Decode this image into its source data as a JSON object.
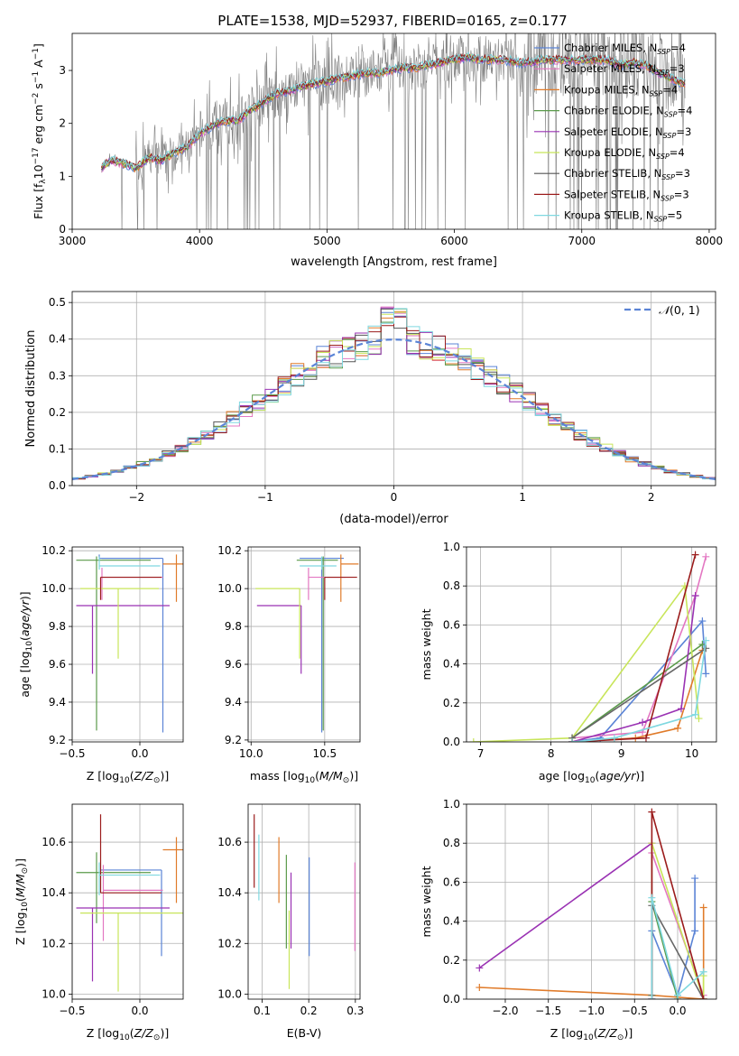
{
  "figure_title": "PLATE=1538, MJD=52937, FIBERID=0165, z=0.177",
  "legend_entries": [
    {
      "label": "Chabrier MILES",
      "nssp": "4",
      "color": "#5b84d6"
    },
    {
      "label": "Salpeter MILES",
      "nssp": "3",
      "color": "#e377c2"
    },
    {
      "label": "Kroupa MILES",
      "nssp": "4",
      "color": "#e07b2a"
    },
    {
      "label": "Chabrier ELODIE",
      "nssp": "4",
      "color": "#5a9a4a"
    },
    {
      "label": "Salpeter ELODIE",
      "nssp": "3",
      "color": "#9a32b3"
    },
    {
      "label": "Kroupa ELODIE",
      "nssp": "4",
      "color": "#c8e55a"
    },
    {
      "label": "Chabrier STELIB",
      "nssp": "3",
      "color": "#555555"
    },
    {
      "label": "Salpeter STELIB",
      "nssp": "3",
      "color": "#9b1c1c"
    },
    {
      "label": "Kroupa STELIB",
      "nssp": "5",
      "color": "#7fd8e0"
    }
  ],
  "chart_data": [
    {
      "id": "spectrum",
      "type": "line",
      "xlabel": "wavelength [Angstrom, rest frame]",
      "ylabel": "Flux [f",
      "xlim": [
        3000,
        8050
      ],
      "ylim": [
        0,
        3.7
      ],
      "xticks": [
        3000,
        4000,
        5000,
        6000,
        7000,
        8000
      ],
      "yticks": [
        0,
        1,
        2,
        3
      ],
      "data_color": "#808080",
      "model_x": [
        3230,
        3300,
        3400,
        3500,
        3600,
        3700,
        3800,
        3900,
        4000,
        4100,
        4200,
        4300,
        4400,
        4500,
        4600,
        4700,
        4800,
        4900,
        5000,
        5100,
        5200,
        5300,
        5400,
        5500,
        5600,
        5700,
        5800,
        5900,
        6000,
        6100,
        6200,
        6300,
        6400,
        6500,
        6600,
        6700,
        6800,
        6900,
        7000,
        7100,
        7200,
        7300,
        7400,
        7500,
        7600,
        7700,
        7800
      ],
      "model_y": [
        1.15,
        1.3,
        1.25,
        1.15,
        1.35,
        1.3,
        1.45,
        1.55,
        1.8,
        1.95,
        2.05,
        2.05,
        2.25,
        2.4,
        2.55,
        2.6,
        2.7,
        2.75,
        2.8,
        2.85,
        2.9,
        2.95,
        2.95,
        3.0,
        3.05,
        3.05,
        3.1,
        3.15,
        3.2,
        3.25,
        3.2,
        3.2,
        3.2,
        3.15,
        3.15,
        3.2,
        3.2,
        3.2,
        3.2,
        3.2,
        3.2,
        3.1,
        3.15,
        3.1,
        2.95,
        2.85,
        2.75
      ]
    },
    {
      "id": "residuals",
      "type": "line",
      "xlabel": "(data-model)/error",
      "ylabel": "Normed distribution",
      "xlim": [
        -2.5,
        2.5
      ],
      "ylim": [
        0,
        0.53
      ],
      "xticks": [
        -2,
        -1,
        0,
        1,
        2
      ],
      "yticks": [
        0.0,
        0.1,
        0.2,
        0.3,
        0.4,
        0.5
      ],
      "legend_label": "(0, 1)",
      "legend_symbol": "𝒩",
      "bin_width": 0.1
    },
    {
      "id": "age-vs-z",
      "type": "scatter",
      "xlabel": "Z [log",
      "ylabel": "age  [log",
      "xlim": [
        -0.5,
        0.32
      ],
      "ylim": [
        9.19,
        10.22
      ],
      "xticks": [
        -0.5,
        0.0
      ],
      "yticks": [
        9.2,
        9.4,
        9.6,
        9.8,
        10.0,
        10.2
      ],
      "points": [
        {
          "x": 0.17,
          "y": 10.16,
          "xerr": [
            0.45,
            0.0
          ],
          "yerr": [
            0.92,
            0.0
          ],
          "color": "#5b84d6"
        },
        {
          "x": -0.3,
          "y": 10.16,
          "xerr": [
            0.0,
            0.45
          ],
          "yerr": [
            0.0,
            0.02
          ],
          "color": "#5b84d6"
        },
        {
          "x": 0.27,
          "y": 10.13,
          "xerr": [
            0.1,
            0.05
          ],
          "yerr": [
            0.2,
            0.05
          ],
          "color": "#e07b2a"
        },
        {
          "x": -0.32,
          "y": 10.15,
          "xerr": [
            0.15,
            0.4
          ],
          "yerr": [
            0.9,
            0.02
          ],
          "color": "#5a9a4a"
        },
        {
          "x": -0.28,
          "y": 10.06,
          "xerr": [
            0.0,
            0.45
          ],
          "yerr": [
            0.12,
            0.05
          ],
          "color": "#e377c2"
        },
        {
          "x": -0.35,
          "y": 9.91,
          "xerr": [
            0.12,
            0.57
          ],
          "yerr": [
            0.36,
            0.0
          ],
          "color": "#9a32b3"
        },
        {
          "x": -0.16,
          "y": 10.0,
          "xerr": [
            0.28,
            0.3
          ],
          "yerr": [
            0.37,
            0.0
          ],
          "color": "#c8e55a"
        },
        {
          "x": -0.29,
          "y": 10.06,
          "xerr": [
            0.0,
            0.45
          ],
          "yerr": [
            0.12,
            0.0
          ],
          "color": "#9b1c1c"
        },
        {
          "x": -0.3,
          "y": 10.12,
          "xerr": [
            0.0,
            0.45
          ],
          "yerr": [
            0.02,
            0.05
          ],
          "color": "#7fd8e0"
        }
      ]
    },
    {
      "id": "age-vs-mass",
      "type": "scatter",
      "xlabel": "mass [log",
      "ylabel": "",
      "xlim": [
        9.98,
        10.74
      ],
      "ylim": [
        9.19,
        10.22
      ],
      "xticks": [
        10.0,
        10.5
      ],
      "yticks": [
        9.2,
        9.4,
        9.6,
        9.8,
        10.0,
        10.2
      ],
      "points": [
        {
          "x": 10.48,
          "y": 10.16,
          "xerr": [
            0.15,
            0.15
          ],
          "yerr": [
            0.92,
            0.0
          ],
          "color": "#5b84d6"
        },
        {
          "x": 10.61,
          "y": 10.13,
          "xerr": [
            0.0,
            0.12
          ],
          "yerr": [
            0.2,
            0.05
          ],
          "color": "#e07b2a"
        },
        {
          "x": 10.49,
          "y": 10.15,
          "xerr": [
            0.18,
            0.1
          ],
          "yerr": [
            0.9,
            0.02
          ],
          "color": "#5a9a4a"
        },
        {
          "x": 10.39,
          "y": 10.06,
          "xerr": [
            0.0,
            0.25
          ],
          "yerr": [
            0.12,
            0.05
          ],
          "color": "#e377c2"
        },
        {
          "x": 10.34,
          "y": 9.91,
          "xerr": [
            0.3,
            0.0
          ],
          "yerr": [
            0.36,
            0.0
          ],
          "color": "#9a32b3"
        },
        {
          "x": 10.33,
          "y": 10.0,
          "xerr": [
            0.3,
            0.0
          ],
          "yerr": [
            0.37,
            0.0
          ],
          "color": "#c8e55a"
        },
        {
          "x": 10.5,
          "y": 10.06,
          "xerr": [
            0.0,
            0.22
          ],
          "yerr": [
            0.12,
            0.0
          ],
          "color": "#9b1c1c"
        },
        {
          "x": 10.48,
          "y": 10.12,
          "xerr": [
            0.15,
            0.1
          ],
          "yerr": [
            0.02,
            0.05
          ],
          "color": "#7fd8e0"
        }
      ]
    },
    {
      "id": "weight-vs-age",
      "type": "line",
      "xlabel": "age  [log",
      "ylabel": "mass weight",
      "xlim": [
        6.8,
        10.35
      ],
      "ylim": [
        0,
        1
      ],
      "xticks": [
        7,
        8,
        9,
        10
      ],
      "yticks": [
        0.0,
        0.2,
        0.4,
        0.6,
        0.8,
        1.0
      ],
      "series": [
        {
          "color": "#5b84d6",
          "x": [
            8.3,
            8.7,
            10.15,
            10.2
          ],
          "y": [
            0.0,
            0.02,
            0.62,
            0.35
          ]
        },
        {
          "color": "#e377c2",
          "x": [
            8.3,
            9.3,
            10.05,
            10.2
          ],
          "y": [
            0.02,
            0.05,
            0.75,
            0.95
          ]
        },
        {
          "color": "#e07b2a",
          "x": [
            8.3,
            9.2,
            9.8,
            10.15
          ],
          "y": [
            0.0,
            0.02,
            0.07,
            0.47
          ]
        },
        {
          "color": "#5a9a4a",
          "x": [
            8.3,
            10.15
          ],
          "y": [
            0.02,
            0.5
          ]
        },
        {
          "color": "#9a32b3",
          "x": [
            8.3,
            9.3,
            9.85,
            10.05
          ],
          "y": [
            0.0,
            0.1,
            0.17,
            0.75
          ]
        },
        {
          "color": "#c8e55a",
          "x": [
            6.9,
            8.3,
            9.9,
            10.1
          ],
          "y": [
            0.0,
            0.02,
            0.8,
            0.12
          ]
        },
        {
          "color": "#666666",
          "x": [
            8.3,
            10.2
          ],
          "y": [
            0.02,
            0.48
          ]
        },
        {
          "color": "#9b1c1c",
          "x": [
            8.3,
            9.35,
            10.05
          ],
          "y": [
            0.0,
            0.02,
            0.96
          ]
        },
        {
          "color": "#7fd8e0",
          "x": [
            8.3,
            8.9,
            10.05,
            10.2
          ],
          "y": [
            0.0,
            0.02,
            0.14,
            0.52
          ]
        }
      ]
    },
    {
      "id": "mass-vs-z",
      "type": "scatter",
      "xlabel": "Z [log",
      "ylabel": "mass [log",
      "xlim": [
        -0.5,
        0.32
      ],
      "ylim": [
        9.98,
        10.75
      ],
      "xticks": [
        -0.5,
        0.0
      ],
      "yticks": [
        10.0,
        10.2,
        10.4,
        10.6
      ],
      "points": [
        {
          "x": 0.16,
          "y": 10.49,
          "xerr": [
            0.45,
            0.0
          ],
          "yerr": [
            0.34,
            0.0
          ],
          "color": "#5b84d6"
        },
        {
          "x": 0.27,
          "y": 10.57,
          "xerr": [
            0.1,
            0.05
          ],
          "yerr": [
            0.21,
            0.05
          ],
          "color": "#e07b2a"
        },
        {
          "x": -0.32,
          "y": 10.48,
          "xerr": [
            0.15,
            0.4
          ],
          "yerr": [
            0.2,
            0.08
          ],
          "color": "#5a9a4a"
        },
        {
          "x": -0.27,
          "y": 10.41,
          "xerr": [
            0.0,
            0.44
          ],
          "yerr": [
            0.2,
            0.1
          ],
          "color": "#e377c2"
        },
        {
          "x": -0.35,
          "y": 10.34,
          "xerr": [
            0.12,
            0.57
          ],
          "yerr": [
            0.29,
            0.0
          ],
          "color": "#9a32b3"
        },
        {
          "x": -0.16,
          "y": 10.32,
          "xerr": [
            0.28,
            0.5
          ],
          "yerr": [
            0.31,
            0.0
          ],
          "color": "#c8e55a"
        },
        {
          "x": -0.29,
          "y": 10.4,
          "xerr": [
            0.0,
            0.45
          ],
          "yerr": [
            0.0,
            0.31
          ],
          "color": "#9b1c1c"
        },
        {
          "x": -0.3,
          "y": 10.47,
          "xerr": [
            0.0,
            0.45
          ],
          "yerr": [
            0.08,
            0.05
          ],
          "color": "#7fd8e0"
        }
      ]
    },
    {
      "id": "mass-vs-ebv",
      "type": "scatter",
      "xlabel": "E(B-V)",
      "ylabel": "",
      "xlim": [
        0.07,
        0.31
      ],
      "ylim": [
        9.98,
        10.75
      ],
      "xticks": [
        0.1,
        0.2,
        0.3
      ],
      "yticks": [
        10.0,
        10.2,
        10.4,
        10.6
      ],
      "bars": [
        {
          "x": 0.083,
          "y0": 10.42,
          "y1": 10.71,
          "color": "#9b1c1c"
        },
        {
          "x": 0.093,
          "y0": 10.37,
          "y1": 10.63,
          "color": "#7fd8e0"
        },
        {
          "x": 0.136,
          "y0": 10.36,
          "y1": 10.62,
          "color": "#e07b2a"
        },
        {
          "x": 0.152,
          "y0": 10.18,
          "y1": 10.55,
          "color": "#5a9a4a"
        },
        {
          "x": 0.158,
          "y0": 10.02,
          "y1": 10.33,
          "color": "#c8e55a"
        },
        {
          "x": 0.162,
          "y0": 10.18,
          "y1": 10.48,
          "color": "#9a32b3"
        },
        {
          "x": 0.201,
          "y0": 10.15,
          "y1": 10.54,
          "color": "#5b84d6"
        },
        {
          "x": 0.299,
          "y0": 10.17,
          "y1": 10.52,
          "color": "#e377c2"
        }
      ]
    },
    {
      "id": "weight-vs-z",
      "type": "line",
      "xlabel": "Z [log",
      "ylabel": "mass weight",
      "xlim": [
        -2.45,
        0.45
      ],
      "ylim": [
        0,
        1
      ],
      "xticks": [
        -2.0,
        -1.5,
        -1.0,
        -0.5,
        0.0
      ],
      "yticks": [
        0.0,
        0.2,
        0.4,
        0.6,
        0.8,
        1.0
      ],
      "series": [
        {
          "color": "#5b84d6",
          "x": [
            -0.3,
            -0.3,
            0.0,
            0.2,
            0.2
          ],
          "y": [
            0.0,
            0.35,
            0.02,
            0.35,
            0.62
          ]
        },
        {
          "color": "#e377c2",
          "x": [
            -0.3,
            -0.3,
            0.3
          ],
          "y": [
            0.02,
            0.75,
            0.02
          ]
        },
        {
          "color": "#e07b2a",
          "x": [
            -2.3,
            -0.3,
            0.3,
            0.3
          ],
          "y": [
            0.06,
            0.02,
            0.0,
            0.47
          ]
        },
        {
          "color": "#5a9a4a",
          "x": [
            -0.3,
            -0.3,
            0.0
          ],
          "y": [
            0.02,
            0.5,
            0.0
          ]
        },
        {
          "color": "#9a32b3",
          "x": [
            -2.3,
            -0.3,
            -0.3
          ],
          "y": [
            0.16,
            0.8,
            0.0
          ]
        },
        {
          "color": "#c8e55a",
          "x": [
            -0.3,
            -0.3,
            0.3,
            0.3
          ],
          "y": [
            0.02,
            0.8,
            0.0,
            0.12
          ]
        },
        {
          "color": "#666666",
          "x": [
            -0.3,
            -0.3,
            0.3
          ],
          "y": [
            0.02,
            0.48,
            0.0
          ]
        },
        {
          "color": "#9b1c1c",
          "x": [
            -0.3,
            -0.3,
            0.3
          ],
          "y": [
            0.0,
            0.96,
            0.0
          ]
        },
        {
          "color": "#7fd8e0",
          "x": [
            -0.3,
            -0.3,
            0.0,
            0.3
          ],
          "y": [
            0.0,
            0.52,
            0.02,
            0.14
          ]
        }
      ]
    }
  ]
}
